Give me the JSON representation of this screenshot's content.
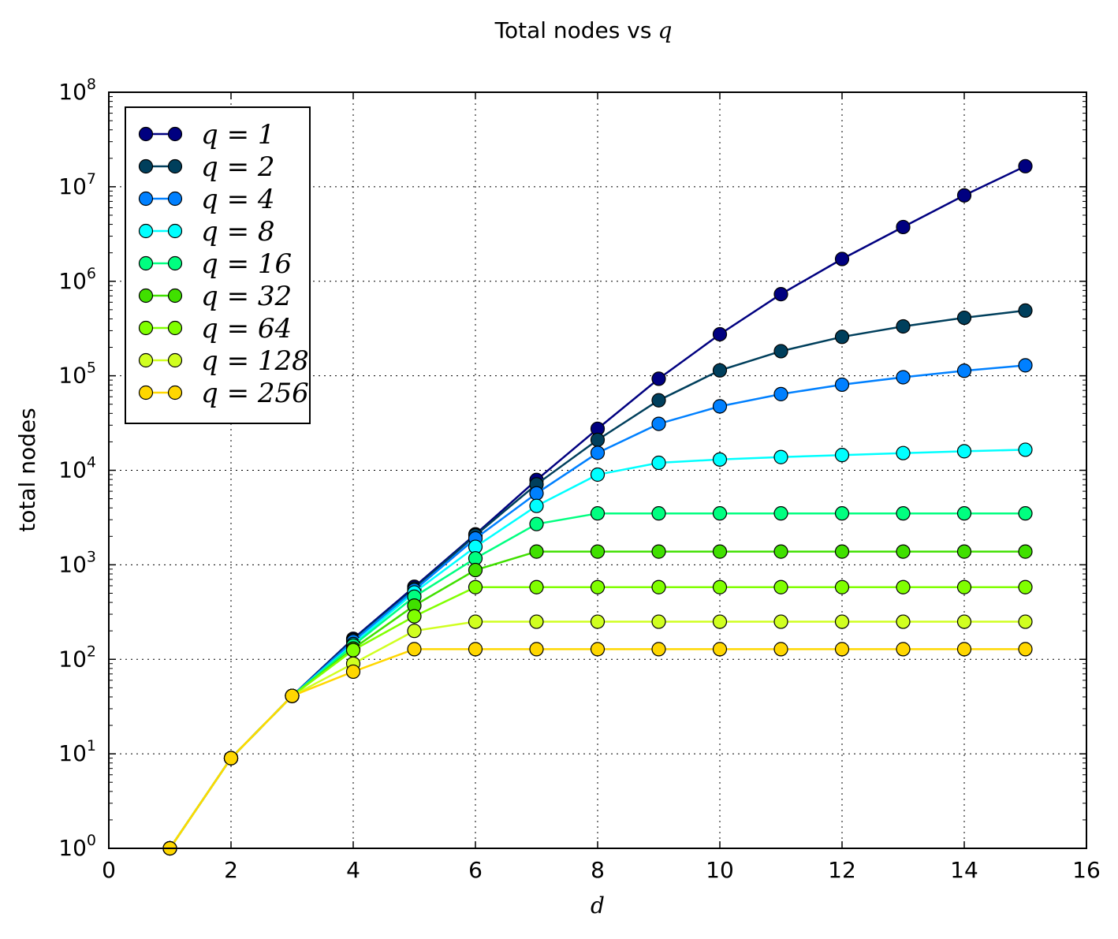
{
  "chart_data": {
    "type": "line",
    "title": "Total nodes vs",
    "title_math": "q",
    "xlabel": "d",
    "ylabel": "total nodes",
    "xlim": [
      0,
      16
    ],
    "ylim": [
      1,
      100000000
    ],
    "yscale": "log",
    "grid": true,
    "legend_position": "top-left",
    "x_ticks": [
      "0",
      "2",
      "4",
      "6",
      "8",
      "10",
      "12",
      "14",
      "16"
    ],
    "y_ticks": [
      {
        "base": "10",
        "exp": "0"
      },
      {
        "base": "10",
        "exp": "1"
      },
      {
        "base": "10",
        "exp": "2"
      },
      {
        "base": "10",
        "exp": "3"
      },
      {
        "base": "10",
        "exp": "4"
      },
      {
        "base": "10",
        "exp": "5"
      },
      {
        "base": "10",
        "exp": "6"
      },
      {
        "base": "10",
        "exp": "7"
      },
      {
        "base": "10",
        "exp": "8"
      }
    ],
    "x": [
      1,
      2,
      3,
      4,
      5,
      6,
      7,
      8,
      9,
      10,
      11,
      12,
      13,
      14,
      15
    ],
    "series": [
      {
        "name": "q = 1",
        "q": "1",
        "color": "#000080",
        "values": [
          1,
          9,
          41,
          165,
          585,
          2100,
          7900,
          27500,
          93000,
          275000,
          730000,
          1720000,
          3750000,
          8100000,
          16500000
        ]
      },
      {
        "name": "q = 2",
        "q": "2",
        "color": "#003f5c",
        "values": [
          1,
          9,
          41,
          160,
          560,
          2050,
          7100,
          21000,
          55000,
          114000,
          182000,
          258000,
          333000,
          411000,
          490000
        ]
      },
      {
        "name": "q = 4",
        "q": "4",
        "color": "#0080ff",
        "values": [
          1,
          9,
          41,
          155,
          540,
          1900,
          5700,
          15300,
          31000,
          47500,
          64000,
          80500,
          96500,
          113000,
          129000
        ]
      },
      {
        "name": "q = 8",
        "q": "8",
        "color": "#00ffff",
        "values": [
          1,
          9,
          41,
          145,
          510,
          1550,
          4200,
          9000,
          12000,
          13000,
          13800,
          14500,
          15200,
          15900,
          16500
        ]
      },
      {
        "name": "q = 16",
        "q": "16",
        "color": "#00ff80",
        "values": [
          1,
          9,
          41,
          140,
          460,
          1170,
          2700,
          3500,
          3500,
          3500,
          3500,
          3500,
          3500,
          3500,
          3500
        ]
      },
      {
        "name": "q = 32",
        "q": "32",
        "color": "#40e000",
        "values": [
          1,
          9,
          41,
          130,
          370,
          880,
          1380,
          1380,
          1380,
          1380,
          1380,
          1380,
          1380,
          1380,
          1380
        ]
      },
      {
        "name": "q = 64",
        "q": "64",
        "color": "#80ff00",
        "values": [
          1,
          9,
          41,
          125,
          285,
          580,
          580,
          580,
          580,
          580,
          580,
          580,
          580,
          580,
          580
        ]
      },
      {
        "name": "q = 128",
        "q": "128",
        "color": "#d0ff20",
        "values": [
          1,
          9,
          41,
          90,
          200,
          250,
          250,
          250,
          250,
          250,
          250,
          250,
          250,
          250,
          250
        ]
      },
      {
        "name": "q = 256",
        "q": "256",
        "color": "#ffd700",
        "values": [
          1,
          9,
          41,
          74,
          128,
          128,
          128,
          128,
          128,
          128,
          128,
          128,
          128,
          128,
          128
        ]
      }
    ]
  }
}
